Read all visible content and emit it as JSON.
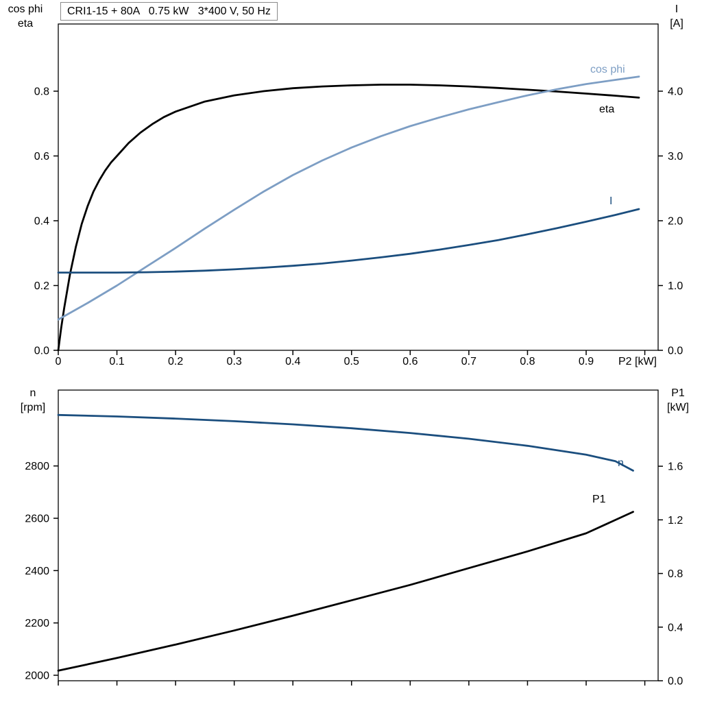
{
  "title_box": {
    "text": "CRI1-15 + 80A   0.75 kW   3*400 V, 50 Hz"
  },
  "axis_corner_labels": {
    "top_left_line1": "cos phi",
    "top_left_line2": "eta",
    "top_right_line1": "I",
    "top_right_line2": "[A]",
    "bottom_left_line1": "n",
    "bottom_left_line2": "[rpm]",
    "bottom_right_line1": "P1",
    "bottom_right_line2": "[kW]"
  },
  "colors": {
    "black": "#000000",
    "light_blue": "#7d9ec4",
    "dark_blue": "#1b4e7e",
    "frame": "#000000"
  },
  "chart_data": [
    {
      "id": "upper-motor-curves",
      "type": "line",
      "title": "CRI1-15 + 80A   0.75 kW   3*400 V, 50 Hz",
      "x_axis": {
        "label": "P2 [kW]",
        "range": [
          0,
          1.0227
        ],
        "ticks": [
          0,
          0.1,
          0.2,
          0.3,
          0.4,
          0.5,
          0.6,
          0.7,
          0.8,
          0.9,
          1.0
        ],
        "tick_labels": [
          "0",
          "0.1",
          "0.2",
          "0.3",
          "0.4",
          "0.5",
          "0.6",
          "0.7",
          "0.8",
          "0.9",
          ""
        ]
      },
      "y_left": {
        "label": "cos phi, eta",
        "range": [
          0,
          1.0074
        ],
        "ticks": [
          0,
          0.2,
          0.4,
          0.6,
          0.8
        ],
        "tick_labels": [
          "0.0",
          "0.2",
          "0.4",
          "0.6",
          "0.8"
        ]
      },
      "y_right": {
        "label": "I [A]",
        "range": [
          0,
          5.037
        ],
        "ticks": [
          0,
          1,
          2,
          3,
          4
        ],
        "tick_labels": [
          "0.0",
          "1.0",
          "2.0",
          "3.0",
          "4.0"
        ]
      },
      "grid": false,
      "series": [
        {
          "name": "eta",
          "label": "eta",
          "axis": "left",
          "color_key": "black",
          "points": [
            [
              0,
              0
            ],
            [
              0.005,
              0.07
            ],
            [
              0.01,
              0.13
            ],
            [
              0.02,
              0.235
            ],
            [
              0.03,
              0.32
            ],
            [
              0.04,
              0.39
            ],
            [
              0.05,
              0.445
            ],
            [
              0.06,
              0.49
            ],
            [
              0.07,
              0.525
            ],
            [
              0.08,
              0.555
            ],
            [
              0.09,
              0.58
            ],
            [
              0.1,
              0.6
            ],
            [
              0.12,
              0.64
            ],
            [
              0.14,
              0.672
            ],
            [
              0.16,
              0.698
            ],
            [
              0.18,
              0.72
            ],
            [
              0.2,
              0.737
            ],
            [
              0.25,
              0.768
            ],
            [
              0.3,
              0.787
            ],
            [
              0.35,
              0.8
            ],
            [
              0.4,
              0.809
            ],
            [
              0.45,
              0.8145
            ],
            [
              0.5,
              0.818
            ],
            [
              0.55,
              0.82
            ],
            [
              0.6,
              0.82
            ],
            [
              0.65,
              0.818
            ],
            [
              0.7,
              0.8145
            ],
            [
              0.75,
              0.81
            ],
            [
              0.8,
              0.8045
            ],
            [
              0.85,
              0.799
            ],
            [
              0.9,
              0.7925
            ],
            [
              0.95,
              0.786
            ],
            [
              0.99,
              0.78
            ]
          ]
        },
        {
          "name": "cos phi",
          "label": "cos phi",
          "axis": "left",
          "color_key": "light_blue",
          "points": [
            [
              0,
              0.095
            ],
            [
              0.05,
              0.146
            ],
            [
              0.1,
              0.2
            ],
            [
              0.15,
              0.258
            ],
            [
              0.2,
              0.316
            ],
            [
              0.25,
              0.376
            ],
            [
              0.3,
              0.434
            ],
            [
              0.35,
              0.49
            ],
            [
              0.4,
              0.541
            ],
            [
              0.45,
              0.586
            ],
            [
              0.5,
              0.626
            ],
            [
              0.55,
              0.661
            ],
            [
              0.6,
              0.692
            ],
            [
              0.65,
              0.719
            ],
            [
              0.7,
              0.744
            ],
            [
              0.75,
              0.766
            ],
            [
              0.8,
              0.787
            ],
            [
              0.85,
              0.806
            ],
            [
              0.9,
              0.822
            ],
            [
              0.95,
              0.835
            ],
            [
              0.99,
              0.845
            ]
          ]
        },
        {
          "name": "I",
          "label": "I",
          "axis": "right",
          "color_key": "dark_blue",
          "points": [
            [
              0,
              1.2
            ],
            [
              0.05,
              1.2
            ],
            [
              0.1,
              1.2
            ],
            [
              0.15,
              1.205
            ],
            [
              0.2,
              1.215
            ],
            [
              0.25,
              1.23
            ],
            [
              0.3,
              1.25
            ],
            [
              0.35,
              1.275
            ],
            [
              0.4,
              1.305
            ],
            [
              0.45,
              1.34
            ],
            [
              0.5,
              1.385
            ],
            [
              0.55,
              1.435
            ],
            [
              0.6,
              1.49
            ],
            [
              0.65,
              1.555
            ],
            [
              0.7,
              1.625
            ],
            [
              0.75,
              1.7
            ],
            [
              0.8,
              1.79
            ],
            [
              0.85,
              1.885
            ],
            [
              0.9,
              1.985
            ],
            [
              0.95,
              2.09
            ],
            [
              0.99,
              2.18
            ]
          ]
        }
      ]
    },
    {
      "id": "lower-speed-power",
      "type": "line",
      "title": "",
      "x_axis": {
        "label": "",
        "range": [
          0,
          1.0227
        ],
        "ticks": [
          0,
          0.1,
          0.2,
          0.3,
          0.4,
          0.5,
          0.6,
          0.7,
          0.8,
          0.9,
          1.0
        ],
        "tick_labels": [
          "",
          "",
          "",
          "",
          "",
          "",
          "",
          "",
          "",
          "",
          ""
        ]
      },
      "y_left": {
        "label": "n [rpm]",
        "range": [
          1979,
          3090
        ],
        "ticks": [
          2000,
          2200,
          2400,
          2600,
          2800
        ],
        "tick_labels": [
          "2000",
          "2200",
          "2400",
          "2600",
          "2800"
        ]
      },
      "y_right": {
        "label": "P1 [kW]",
        "range": [
          0,
          2.168
        ],
        "ticks": [
          0,
          0.4,
          0.8,
          1.2,
          1.6
        ],
        "tick_labels": [
          "0.0",
          "0.4",
          "0.8",
          "1.2",
          "1.6"
        ]
      },
      "grid": false,
      "series": [
        {
          "name": "n",
          "label": "n",
          "axis": "left",
          "color_key": "dark_blue",
          "points": [
            [
              0,
              2995
            ],
            [
              0.1,
              2989
            ],
            [
              0.2,
              2981
            ],
            [
              0.3,
              2971
            ],
            [
              0.4,
              2959
            ],
            [
              0.5,
              2944
            ],
            [
              0.6,
              2926
            ],
            [
              0.7,
              2904
            ],
            [
              0.8,
              2877
            ],
            [
              0.9,
              2843
            ],
            [
              0.95,
              2818
            ],
            [
              0.98,
              2782
            ]
          ]
        },
        {
          "name": "P1",
          "label": "P1",
          "axis": "right",
          "color_key": "black",
          "points": [
            [
              0,
              0.075
            ],
            [
              0.1,
              0.17
            ],
            [
              0.2,
              0.27
            ],
            [
              0.3,
              0.375
            ],
            [
              0.4,
              0.485
            ],
            [
              0.5,
              0.6
            ],
            [
              0.6,
              0.715
            ],
            [
              0.7,
              0.84
            ],
            [
              0.8,
              0.965
            ],
            [
              0.9,
              1.1
            ],
            [
              0.98,
              1.26
            ]
          ]
        }
      ]
    }
  ]
}
